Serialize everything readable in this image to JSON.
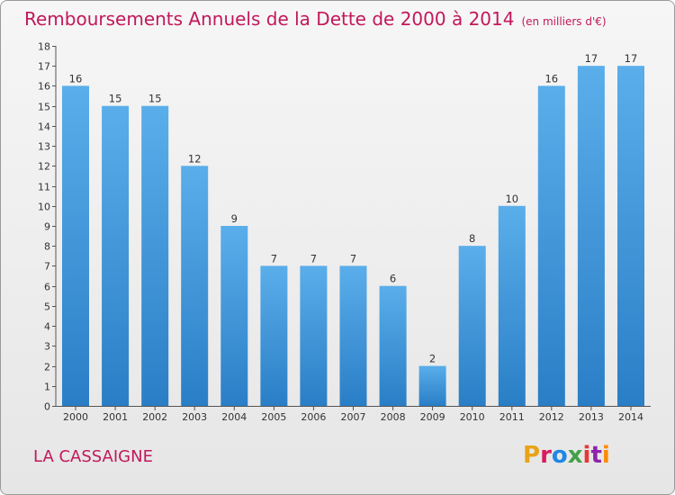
{
  "header": {
    "title": "Remboursements Annuels de la Dette de 2000 à 2014",
    "unit": "(en milliers d'€)"
  },
  "footer": {
    "place": "LA CASSAIGNE",
    "logo_text": "Proxiti",
    "logo_colors": [
      "#e8a317",
      "#d81b60",
      "#1e88e5",
      "#43a047",
      "#e53935",
      "#8e24aa",
      "#fb8c00"
    ]
  },
  "chart_data": {
    "type": "bar",
    "title": "Remboursements Annuels de la Dette de 2000 à 2014",
    "categories": [
      "2000",
      "2001",
      "2002",
      "2003",
      "2004",
      "2005",
      "2006",
      "2007",
      "2008",
      "2009",
      "2010",
      "2011",
      "2012",
      "2013",
      "2014"
    ],
    "values": [
      16,
      15,
      15,
      12,
      9,
      7,
      7,
      7,
      6,
      2,
      8,
      10,
      16,
      17,
      17
    ],
    "ylim": [
      0,
      18
    ],
    "yticks": [
      0,
      1,
      2,
      3,
      4,
      5,
      6,
      7,
      8,
      9,
      10,
      11,
      12,
      13,
      14,
      15,
      16,
      17,
      18
    ],
    "grid": false,
    "bar_color_top": "#5aaeea",
    "bar_color_bottom": "#2a7ec6",
    "axis_color": "#555555"
  }
}
